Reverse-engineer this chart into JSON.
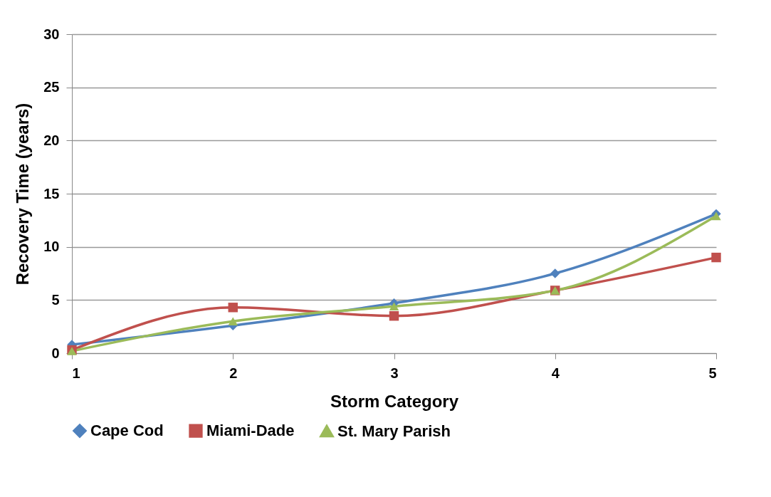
{
  "chart_data": {
    "type": "line",
    "xlabel": "Storm Category",
    "ylabel": "Recovery Time (years)",
    "x": [
      1,
      2,
      3,
      4,
      5
    ],
    "xlim": [
      1,
      5
    ],
    "xticks": [
      1,
      2,
      3,
      4,
      5
    ],
    "ylim": [
      0,
      30
    ],
    "yticks": [
      0,
      5,
      10,
      15,
      20,
      25,
      30
    ],
    "grid": "y",
    "legend": "bottom",
    "series": [
      {
        "name": "Cape Cod",
        "color": "#4f81bd",
        "marker": "diamond",
        "values": [
          0.8,
          2.6,
          4.7,
          7.5,
          13.1
        ]
      },
      {
        "name": "Miami-Dade",
        "color": "#c0504d",
        "marker": "square",
        "values": [
          0.3,
          4.3,
          3.5,
          5.9,
          9
        ]
      },
      {
        "name": "St. Mary Parish",
        "color": "#9bbb59",
        "marker": "triangle",
        "values": [
          0.2,
          3,
          4.4,
          5.9,
          12.9
        ]
      }
    ]
  }
}
